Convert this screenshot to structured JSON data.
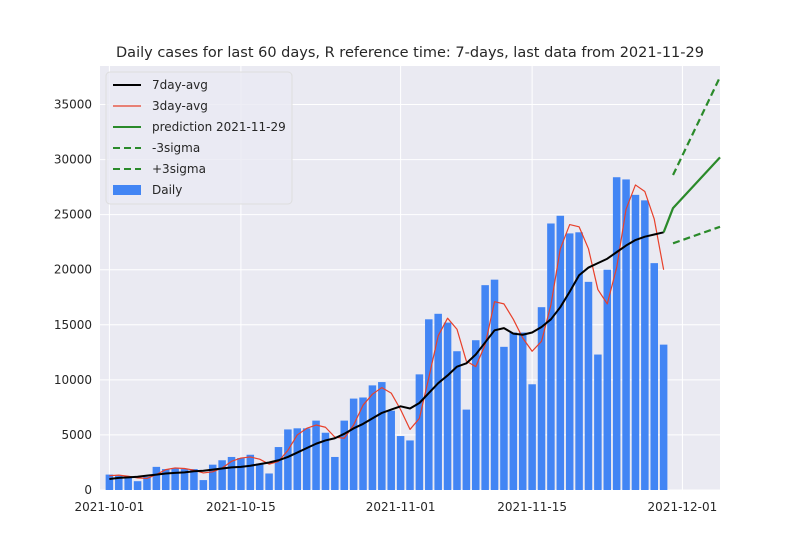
{
  "chart_data": {
    "type": "bar+line",
    "title": "Daily cases for last 60 days, R reference time: 7-days, last data from 2021-11-29",
    "xlabel": "",
    "ylabel": "",
    "x_range": [
      "2021-09-30",
      "2021-12-05"
    ],
    "ylim": [
      0,
      38500
    ],
    "yticks": [
      0,
      5000,
      10000,
      15000,
      20000,
      25000,
      30000,
      35000
    ],
    "xticks": [
      "2021-10-01",
      "2021-10-15",
      "2021-11-01",
      "2021-11-15",
      "2021-12-01"
    ],
    "grid": true,
    "legend_position": "top-left",
    "colors": {
      "daily": "#4285f4",
      "avg7": "#000000",
      "avg3": "#e8402a",
      "prediction": "#2a8a2a",
      "background": "#eaeaf2",
      "grid": "#ffffff"
    },
    "legend": [
      {
        "label": "7day-avg",
        "style": "solid",
        "color": "#000000"
      },
      {
        "label": "3day-avg",
        "style": "solid",
        "color": "#e8402a"
      },
      {
        "label": "prediction 2021-11-29",
        "style": "solid",
        "color": "#2a8a2a"
      },
      {
        "label": "-3sigma",
        "style": "dashed",
        "color": "#2a8a2a"
      },
      {
        "label": "+3sigma",
        "style": "dashed",
        "color": "#2a8a2a"
      },
      {
        "label": "Daily",
        "style": "bar",
        "color": "#4285f4"
      }
    ],
    "dates": [
      "2021-10-01",
      "2021-10-02",
      "2021-10-03",
      "2021-10-04",
      "2021-10-05",
      "2021-10-06",
      "2021-10-07",
      "2021-10-08",
      "2021-10-09",
      "2021-10-10",
      "2021-10-11",
      "2021-10-12",
      "2021-10-13",
      "2021-10-14",
      "2021-10-15",
      "2021-10-16",
      "2021-10-17",
      "2021-10-18",
      "2021-10-19",
      "2021-10-20",
      "2021-10-21",
      "2021-10-22",
      "2021-10-23",
      "2021-10-24",
      "2021-10-25",
      "2021-10-26",
      "2021-10-27",
      "2021-10-28",
      "2021-10-29",
      "2021-10-30",
      "2021-10-31",
      "2021-11-01",
      "2021-11-02",
      "2021-11-03",
      "2021-11-04",
      "2021-11-05",
      "2021-11-06",
      "2021-11-07",
      "2021-11-08",
      "2021-11-09",
      "2021-11-10",
      "2021-11-11",
      "2021-11-12",
      "2021-11-13",
      "2021-11-14",
      "2021-11-15",
      "2021-11-16",
      "2021-11-17",
      "2021-11-18",
      "2021-11-19",
      "2021-11-20",
      "2021-11-21",
      "2021-11-22",
      "2021-11-23",
      "2021-11-24",
      "2021-11-25",
      "2021-11-26",
      "2021-11-27",
      "2021-11-28",
      "2021-11-29"
    ],
    "daily": [
      1400,
      1300,
      1200,
      800,
      1200,
      2100,
      1900,
      2000,
      1900,
      1900,
      900,
      2300,
      2700,
      3000,
      2900,
      3200,
      2400,
      1500,
      3900,
      5500,
      5600,
      5600,
      6300,
      5200,
      3000,
      6300,
      8300,
      8400,
      9500,
      9800,
      7200,
      4900,
      4500,
      10500,
      15500,
      16000,
      15200,
      12600,
      7300,
      13600,
      18600,
      19100,
      13000,
      14300,
      14300,
      9600,
      16600,
      24200,
      24900,
      23300,
      23400,
      18900,
      12300,
      20000,
      28400,
      28200,
      26800,
      26300,
      20600,
      13200
    ],
    "avg7": [
      1000,
      1100,
      1150,
      1200,
      1300,
      1400,
      1500,
      1550,
      1600,
      1700,
      1750,
      1850,
      1950,
      2050,
      2100,
      2200,
      2350,
      2500,
      2700,
      3000,
      3400,
      3800,
      4200,
      4500,
      4700,
      5100,
      5600,
      6000,
      6500,
      7000,
      7300,
      7600,
      7400,
      7900,
      8800,
      9700,
      10400,
      11200,
      11500,
      12300,
      13400,
      14500,
      14700,
      14200,
      14100,
      14300,
      14800,
      15500,
      16600,
      18000,
      19500,
      20200,
      20600,
      21000,
      21600,
      22200,
      22700,
      23000,
      23200,
      23400
    ],
    "avg3": [
      1300,
      1350,
      1250,
      1100,
      1050,
      1400,
      1850,
      2000,
      1950,
      1800,
      1550,
      1650,
      2000,
      2600,
      2900,
      3000,
      2800,
      2350,
      2600,
      3600,
      5000,
      5600,
      5900,
      5700,
      4800,
      4700,
      5900,
      7700,
      8700,
      9300,
      8800,
      7300,
      5500,
      6500,
      10200,
      14000,
      15600,
      14600,
      11700,
      11200,
      13200,
      17100,
      16900,
      15500,
      13800,
      12600,
      13500,
      16800,
      21900,
      24100,
      23900,
      21900,
      18200,
      16900,
      20200,
      25500,
      27700,
      27100,
      24600,
      20000
    ],
    "pred_dates": [
      "2021-11-29",
      "2021-11-30",
      "2021-12-05"
    ],
    "prediction": [
      23400,
      25600,
      30200
    ],
    "pred_minus3sigma_dates": [
      "2021-11-30",
      "2021-12-05"
    ],
    "pred_minus3sigma": [
      28600,
      37500
    ],
    "pred_plus3sigma_dates": [
      "2021-11-30",
      "2021-12-05"
    ],
    "pred_plus3sigma": [
      22400,
      23900
    ]
  }
}
